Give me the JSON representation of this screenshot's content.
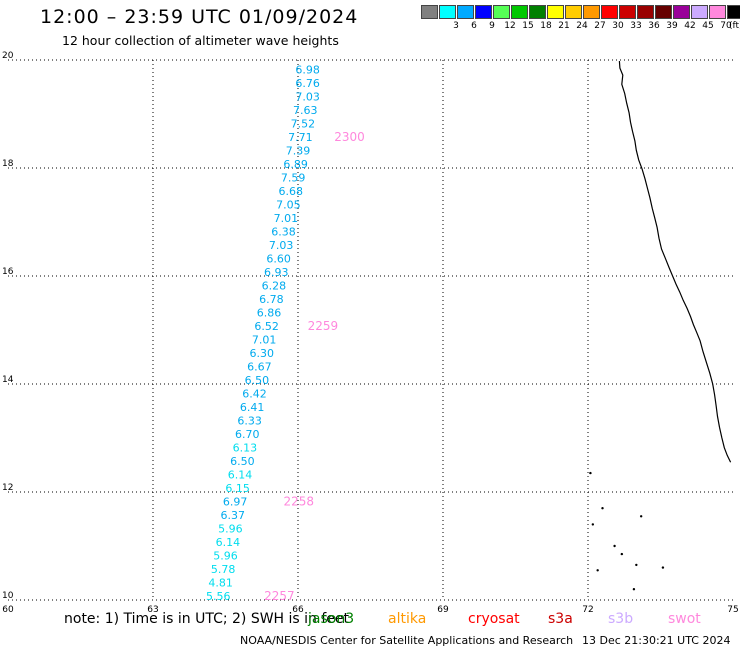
{
  "header": {
    "title": "12:00 – 23:59 UTC 01/09/2024",
    "subtitle": "12 hour collection of altimeter wave heights"
  },
  "legend": {
    "unit": "(ft)",
    "bins": [
      {
        "label": "",
        "color": "#808080"
      },
      {
        "label": "3",
        "color": "#00ffff"
      },
      {
        "label": "6",
        "color": "#00aaff"
      },
      {
        "label": "9",
        "color": "#0000ff"
      },
      {
        "label": "12",
        "color": "#55ff55"
      },
      {
        "label": "15",
        "color": "#00c800"
      },
      {
        "label": "18",
        "color": "#008000"
      },
      {
        "label": "21",
        "color": "#ffff00"
      },
      {
        "label": "24",
        "color": "#ffcc00"
      },
      {
        "label": "27",
        "color": "#ff9900"
      },
      {
        "label": "30",
        "color": "#ff0000"
      },
      {
        "label": "33",
        "color": "#cc0000"
      },
      {
        "label": "36",
        "color": "#990000"
      },
      {
        "label": "39",
        "color": "#660000"
      },
      {
        "label": "42",
        "color": "#990099"
      },
      {
        "label": "45",
        "color": "#ccaaff"
      },
      {
        "label": "70",
        "color": "#ff88dd"
      },
      {
        "label": "",
        "color": "#000000"
      }
    ]
  },
  "map": {
    "lat_range": [
      10,
      20
    ],
    "lon_range": [
      60,
      75
    ],
    "lat_ticks": [
      "10",
      "12",
      "14",
      "16",
      "18",
      "20"
    ],
    "lon_ticks": [
      "60",
      "63",
      "66",
      "69",
      "72",
      "75"
    ],
    "grid": "dotted",
    "wave_color_low": "#00ddee",
    "wave_color_mid": "#00aaee",
    "time_color": "#ff88dd",
    "wave_labels": [
      {
        "lon": 66.2,
        "lat": 19.75,
        "v": "6.98"
      },
      {
        "lon": 66.2,
        "lat": 19.5,
        "v": "6.76"
      },
      {
        "lon": 66.2,
        "lat": 19.25,
        "v": "7.03"
      },
      {
        "lon": 66.15,
        "lat": 19.0,
        "v": "7.63"
      },
      {
        "lon": 66.1,
        "lat": 18.75,
        "v": "7.52"
      },
      {
        "lon": 66.05,
        "lat": 18.5,
        "v": "7.71"
      },
      {
        "lon": 66.0,
        "lat": 18.25,
        "v": "7.39"
      },
      {
        "lon": 65.95,
        "lat": 18.0,
        "v": "6.89"
      },
      {
        "lon": 65.9,
        "lat": 17.75,
        "v": "7.59"
      },
      {
        "lon": 65.85,
        "lat": 17.5,
        "v": "6.68"
      },
      {
        "lon": 65.8,
        "lat": 17.25,
        "v": "7.05"
      },
      {
        "lon": 65.75,
        "lat": 17.0,
        "v": "7.01"
      },
      {
        "lon": 65.7,
        "lat": 16.75,
        "v": "6.38"
      },
      {
        "lon": 65.65,
        "lat": 16.5,
        "v": "7.03"
      },
      {
        "lon": 65.6,
        "lat": 16.25,
        "v": "6.60"
      },
      {
        "lon": 65.55,
        "lat": 16.0,
        "v": "6.93"
      },
      {
        "lon": 65.5,
        "lat": 15.75,
        "v": "6.28"
      },
      {
        "lon": 65.45,
        "lat": 15.5,
        "v": "6.78"
      },
      {
        "lon": 65.4,
        "lat": 15.25,
        "v": "6.86"
      },
      {
        "lon": 65.35,
        "lat": 15.0,
        "v": "6.52"
      },
      {
        "lon": 65.3,
        "lat": 14.75,
        "v": "7.01"
      },
      {
        "lon": 65.25,
        "lat": 14.5,
        "v": "6.30"
      },
      {
        "lon": 65.2,
        "lat": 14.25,
        "v": "6.67"
      },
      {
        "lon": 65.15,
        "lat": 14.0,
        "v": "6.50"
      },
      {
        "lon": 65.1,
        "lat": 13.75,
        "v": "6.42"
      },
      {
        "lon": 65.05,
        "lat": 13.5,
        "v": "6.41"
      },
      {
        "lon": 65.0,
        "lat": 13.25,
        "v": "6.33"
      },
      {
        "lon": 64.95,
        "lat": 13.0,
        "v": "6.70"
      },
      {
        "lon": 64.9,
        "lat": 12.75,
        "v": "6.13"
      },
      {
        "lon": 64.85,
        "lat": 12.5,
        "v": "6.50"
      },
      {
        "lon": 64.8,
        "lat": 12.25,
        "v": "6.14"
      },
      {
        "lon": 64.75,
        "lat": 12.0,
        "v": "6.15"
      },
      {
        "lon": 64.7,
        "lat": 11.75,
        "v": "6.97"
      },
      {
        "lon": 64.65,
        "lat": 11.5,
        "v": "6.37"
      },
      {
        "lon": 64.6,
        "lat": 11.25,
        "v": "5.96"
      },
      {
        "lon": 64.55,
        "lat": 11.0,
        "v": "6.14"
      },
      {
        "lon": 64.5,
        "lat": 10.75,
        "v": "5.96"
      },
      {
        "lon": 64.45,
        "lat": 10.5,
        "v": "5.78"
      },
      {
        "lon": 64.4,
        "lat": 10.25,
        "v": "4.81"
      },
      {
        "lon": 64.35,
        "lat": 10.0,
        "v": "5.56"
      }
    ],
    "time_labels": [
      {
        "lon": 66.75,
        "lat": 18.5,
        "v": "2300"
      },
      {
        "lon": 66.2,
        "lat": 15.0,
        "v": "2259"
      },
      {
        "lon": 65.7,
        "lat": 11.75,
        "v": "2258"
      },
      {
        "lon": 65.3,
        "lat": 10.0,
        "v": "2257"
      }
    ],
    "coastline": [
      [
        72.65,
        19.98
      ],
      [
        72.66,
        19.85
      ],
      [
        72.72,
        19.72
      ],
      [
        72.7,
        19.55
      ],
      [
        72.76,
        19.38
      ],
      [
        72.8,
        19.2
      ],
      [
        72.85,
        19.02
      ],
      [
        72.88,
        18.85
      ],
      [
        72.92,
        18.68
      ],
      [
        72.97,
        18.5
      ],
      [
        73.0,
        18.33
      ],
      [
        73.05,
        18.15
      ],
      [
        73.12,
        17.98
      ],
      [
        73.18,
        17.8
      ],
      [
        73.23,
        17.62
      ],
      [
        73.28,
        17.45
      ],
      [
        73.33,
        17.25
      ],
      [
        73.38,
        17.08
      ],
      [
        73.43,
        16.9
      ],
      [
        73.47,
        16.7
      ],
      [
        73.52,
        16.5
      ],
      [
        73.6,
        16.33
      ],
      [
        73.68,
        16.15
      ],
      [
        73.75,
        16.0
      ],
      [
        73.82,
        15.85
      ],
      [
        73.9,
        15.7
      ],
      [
        73.97,
        15.55
      ],
      [
        74.05,
        15.4
      ],
      [
        74.12,
        15.25
      ],
      [
        74.18,
        15.1
      ],
      [
        74.25,
        14.95
      ],
      [
        74.32,
        14.8
      ],
      [
        74.38,
        14.6
      ],
      [
        74.45,
        14.4
      ],
      [
        74.52,
        14.2
      ],
      [
        74.58,
        14.0
      ],
      [
        74.62,
        13.8
      ],
      [
        74.65,
        13.6
      ],
      [
        74.68,
        13.4
      ],
      [
        74.72,
        13.2
      ],
      [
        74.77,
        13.0
      ],
      [
        74.82,
        12.82
      ],
      [
        74.88,
        12.68
      ],
      [
        74.95,
        12.55
      ]
    ]
  },
  "footer": {
    "note": "note: 1) Time is in UTC; 2) SWH is in feet",
    "missions": [
      {
        "name": "jason3",
        "color": "#008000"
      },
      {
        "name": "altika",
        "color": "#ff9900"
      },
      {
        "name": "cryosat",
        "color": "#ff0000"
      },
      {
        "name": "s3a",
        "color": "#cc0000"
      },
      {
        "name": "s3b",
        "color": "#ccaaff"
      },
      {
        "name": "swot",
        "color": "#ff88dd"
      }
    ],
    "credit": "NOAA/NESDIS Center for Satellite Applications and Research",
    "timestamp": "13 Dec 21:30:21 UTC 2024"
  }
}
